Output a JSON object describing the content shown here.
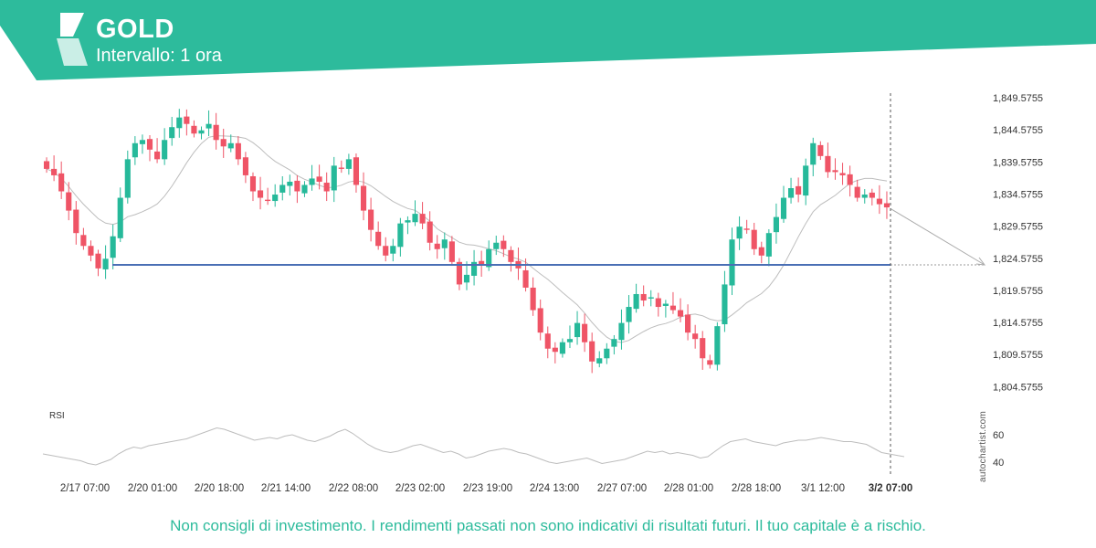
{
  "header": {
    "symbol": "GOLD",
    "interval": "Intervallo: 1 ora"
  },
  "colors": {
    "brand": "#2dbb9c",
    "bullish": "#26b99a",
    "bearish": "#ef5466",
    "support_line": "#4a6fb5",
    "moving_average": "#bdbdbd",
    "rsi_line": "#bdbdbd"
  },
  "disclaimer": "Non consigli di investimento. I rendimenti passati non sono indicativi di risultati futuri. Il tuo capitale è a rischio.",
  "watermark": "autochartist.com",
  "chart_data": {
    "type": "candlestick",
    "y_ticks": [
      "1,849.5755",
      "1,844.5755",
      "1,839.5755",
      "1,834.5755",
      "1,829.5755",
      "1,824.5755",
      "1,819.5755",
      "1,814.5755",
      "1,809.5755",
      "1,804.5755"
    ],
    "ylim": [
      1801.5,
      1852.0
    ],
    "x_ticks": [
      "2/17 07:00",
      "2/20 01:00",
      "2/20 18:00",
      "2/21 14:00",
      "2/22 08:00",
      "2/23 02:00",
      "2/23 19:00",
      "2/24 13:00",
      "2/27 07:00",
      "2/28 01:00",
      "2/28 18:00",
      "3/1 12:00",
      "3/2 07:00"
    ],
    "current_time_label": "3/2 07:00",
    "close_path": [
      1838.5,
      1837.5,
      1835.0,
      1832.0,
      1828.5,
      1826.5,
      1825.0,
      1823.0,
      1824.5,
      1828.0,
      1834.0,
      1840.0,
      1842.5,
      1843.0,
      1841.5,
      1840.0,
      1843.0,
      1845.0,
      1846.5,
      1845.5,
      1844.0,
      1844.5,
      1845.5,
      1843.0,
      1842.0,
      1842.5,
      1840.0,
      1837.5,
      1835.0,
      1834.0,
      1833.5,
      1834.5,
      1836.0,
      1836.5,
      1835.0,
      1836.0,
      1837.0,
      1836.5,
      1835.0,
      1839.0,
      1838.5,
      1840.0,
      1836.0,
      1832.0,
      1829.0,
      1826.5,
      1825.0,
      1826.5,
      1830.0,
      1830.5,
      1831.5,
      1830.0,
      1827.0,
      1826.0,
      1827.5,
      1824.0,
      1820.5,
      1822.0,
      1824.0,
      1823.5,
      1826.0,
      1827.0,
      1826.0,
      1824.0,
      1823.0,
      1820.0,
      1816.5,
      1813.0,
      1810.5,
      1810.0,
      1811.5,
      1812.0,
      1814.5,
      1811.5,
      1808.5,
      1809.0,
      1810.5,
      1812.0,
      1814.5,
      1817.0,
      1819.0,
      1818.0,
      1818.5,
      1817.0,
      1817.5,
      1816.5,
      1815.5,
      1813.0,
      1812.0,
      1809.0,
      1808.0,
      1814.0,
      1820.5,
      1827.5,
      1829.5,
      1829.0,
      1826.0,
      1825.0,
      1828.5,
      1831.0,
      1834.0,
      1835.5,
      1834.5,
      1839.0,
      1842.5,
      1840.5,
      1838.0,
      1838.0,
      1837.5,
      1836.0,
      1834.0,
      1834.5,
      1834.0,
      1833.0,
      1832.5
    ],
    "support_level": 1823.55,
    "projection": {
      "from_time": "3/2 07:00",
      "from": 1832.3,
      "to": 1823.55
    },
    "rsi": {
      "label": "RSI",
      "ticks": [
        60,
        40
      ],
      "ylim": [
        34,
        72
      ],
      "values": [
        46,
        45,
        44,
        43,
        42,
        41,
        39,
        38,
        40,
        42,
        46,
        49,
        51,
        50,
        52,
        53,
        54,
        55,
        56,
        57,
        59,
        61,
        63,
        65,
        64,
        62,
        60,
        58,
        56,
        57,
        58,
        57,
        59,
        60,
        58,
        56,
        55,
        57,
        59,
        62,
        64,
        61,
        57,
        53,
        50,
        48,
        47,
        48,
        50,
        52,
        53,
        51,
        49,
        47,
        48,
        46,
        43,
        44,
        46,
        48,
        49,
        50,
        49,
        47,
        46,
        44,
        42,
        40,
        39,
        40,
        41,
        42,
        43,
        41,
        39,
        40,
        41,
        42,
        44,
        46,
        48,
        47,
        48,
        46,
        47,
        46,
        45,
        43,
        44,
        48,
        52,
        55,
        56,
        57,
        55,
        54,
        53,
        52,
        54,
        55,
        56,
        56,
        57,
        58,
        57,
        56,
        55,
        55,
        54,
        53,
        50,
        47,
        46,
        45,
        44
      ]
    }
  }
}
